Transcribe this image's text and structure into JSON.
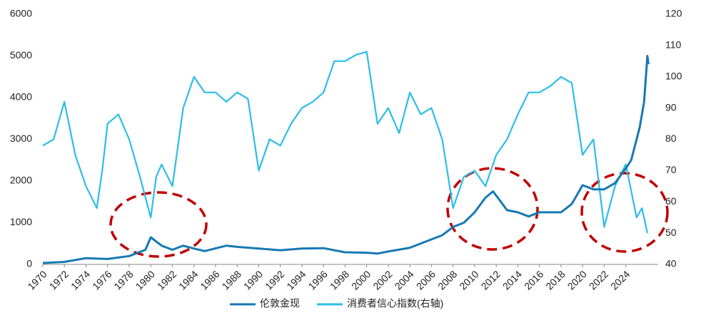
{
  "chart_data": {
    "type": "line",
    "xlim": [
      1970,
      2027
    ],
    "xticks": [
      1970,
      1972,
      1974,
      1976,
      1978,
      1980,
      1982,
      1984,
      1986,
      1988,
      1990,
      1992,
      1994,
      1996,
      1998,
      2000,
      2002,
      2004,
      2006,
      2008,
      2010,
      2012,
      2014,
      2016,
      2018,
      2020,
      2022,
      2024
    ],
    "ylim": [
      0,
      6000
    ],
    "yticks": [
      0,
      1000,
      2000,
      3000,
      4000,
      5000,
      6000
    ],
    "y2lim": [
      40,
      120
    ],
    "y2ticks": [
      40,
      50,
      60,
      70,
      80,
      90,
      100,
      110,
      120
    ],
    "grid": false,
    "series": [
      {
        "name": "伦敦金现",
        "color": "#1679b3",
        "x": [
          1970,
          1972,
          1974,
          1976,
          1978,
          1979.5,
          1980,
          1981,
          1982,
          1983,
          1984,
          1985,
          1987,
          1988,
          1990,
          1992,
          1994,
          1996,
          1998,
          2000,
          2001,
          2002,
          2004,
          2006,
          2007,
          2008,
          2009,
          2010,
          2011,
          2011.7,
          2012,
          2013,
          2014,
          2015,
          2016,
          2017,
          2018,
          2019,
          2020,
          2021,
          2022,
          2023,
          2024,
          2024.5,
          2025,
          2025.3,
          2025.7,
          2026,
          2026.1
        ],
        "values": [
          35,
          60,
          150,
          130,
          200,
          350,
          650,
          450,
          350,
          450,
          380,
          320,
          450,
          420,
          380,
          340,
          380,
          390,
          290,
          280,
          260,
          310,
          400,
          600,
          700,
          900,
          1000,
          1250,
          1600,
          1750,
          1650,
          1300,
          1250,
          1150,
          1250,
          1250,
          1250,
          1450,
          1900,
          1800,
          1800,
          1950,
          2300,
          2500,
          3000,
          3300,
          3900,
          5000,
          4800
        ]
      },
      {
        "name": "消费者信心指数(右轴)",
        "color": "#2bbde8",
        "axis": "y2",
        "x": [
          1970,
          1971,
          1972,
          1973,
          1974,
          1975,
          1975.5,
          1976,
          1977,
          1978,
          1979,
          1980,
          1980.5,
          1981,
          1982,
          1983,
          1984,
          1985,
          1986,
          1987,
          1988,
          1989,
          1990,
          1991,
          1992,
          1993,
          1994,
          1995,
          1996,
          1997,
          1998,
          1999,
          2000,
          2001,
          2002,
          2003,
          2004,
          2005,
          2006,
          2007,
          2008,
          2009,
          2010,
          2011,
          2012,
          2013,
          2014,
          2015,
          2016,
          2017,
          2018,
          2019,
          2020,
          2021,
          2022,
          2023,
          2024,
          2025,
          2025.5,
          2026
        ],
        "values": [
          78,
          80,
          92,
          75,
          65,
          58,
          70,
          85,
          88,
          80,
          68,
          55,
          68,
          72,
          65,
          90,
          100,
          95,
          95,
          92,
          95,
          93,
          70,
          80,
          78,
          85,
          90,
          92,
          95,
          105,
          105,
          107,
          108,
          85,
          90,
          82,
          95,
          88,
          90,
          80,
          58,
          68,
          70,
          65,
          75,
          80,
          88,
          95,
          95,
          97,
          100,
          98,
          75,
          80,
          52,
          65,
          72,
          55,
          58,
          50
        ]
      }
    ]
  }
}
